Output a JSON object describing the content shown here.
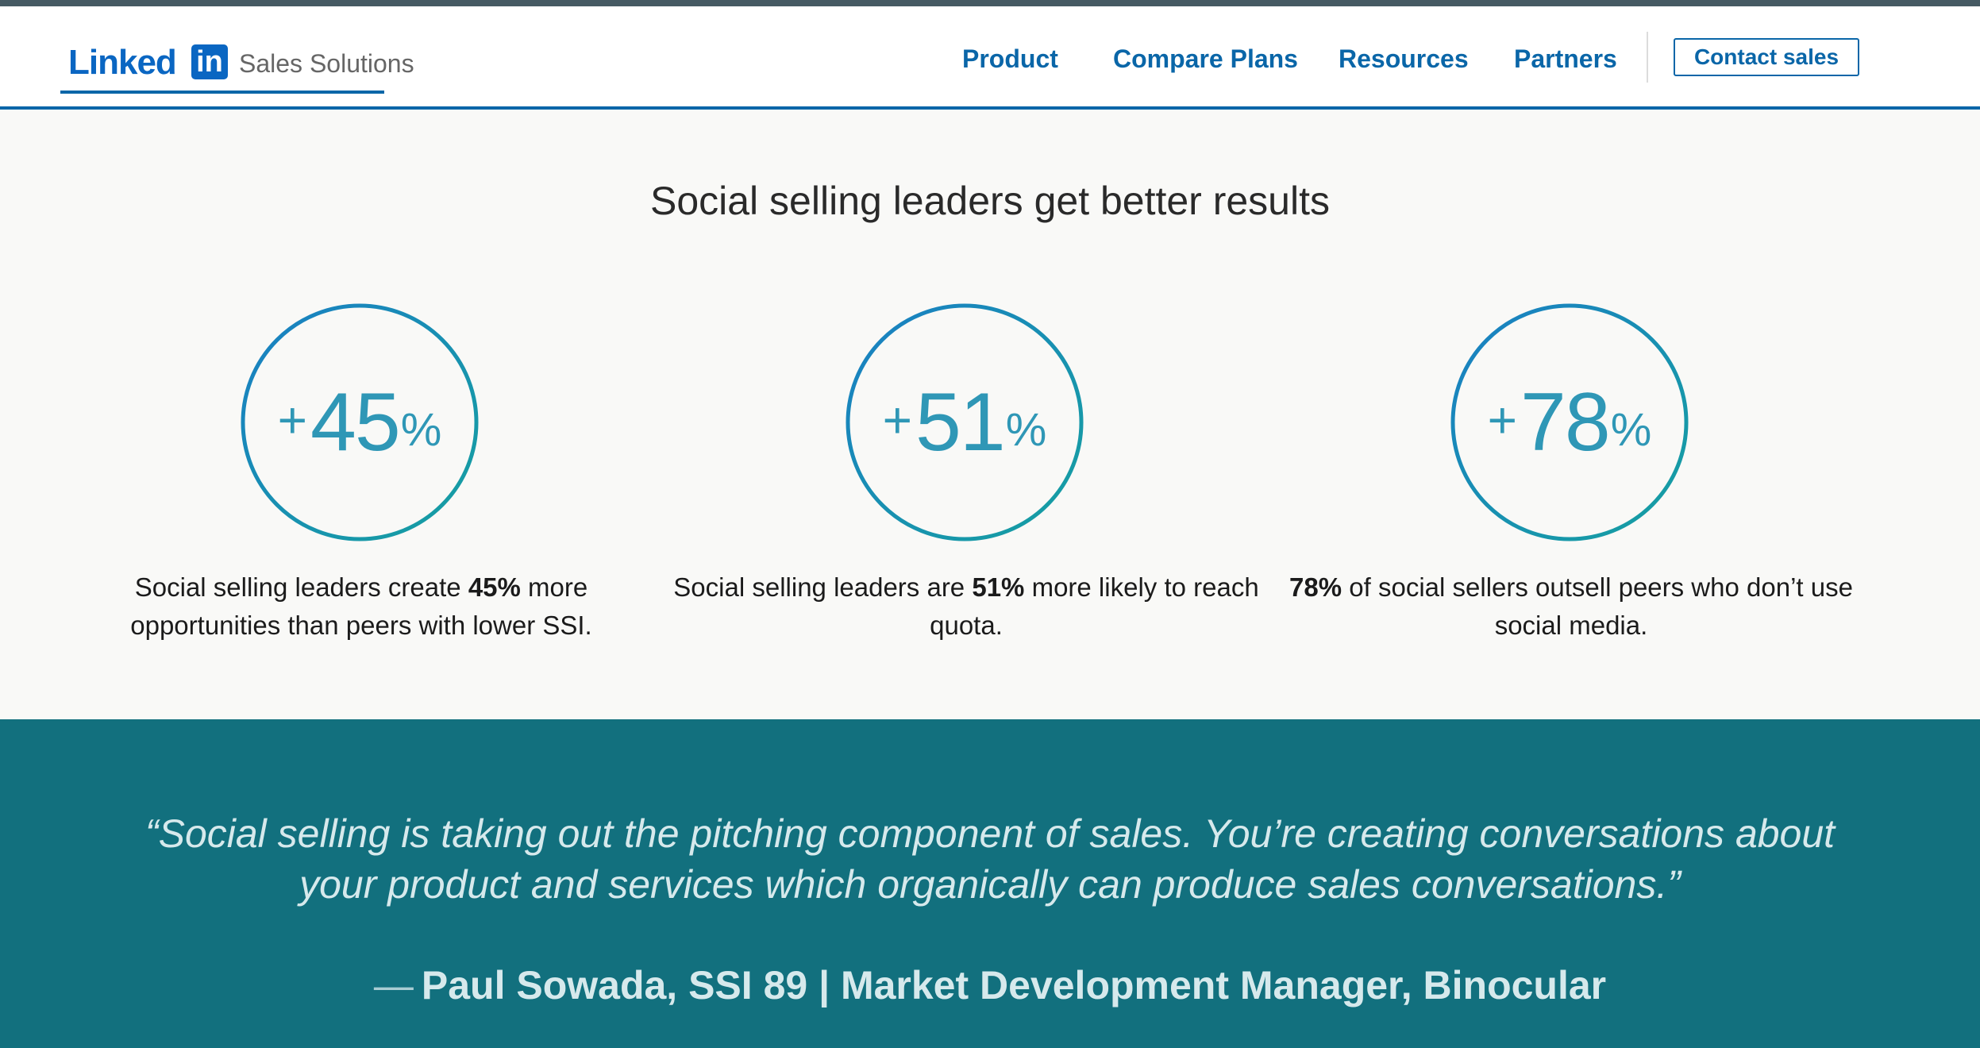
{
  "header": {
    "logo_word": "Linked",
    "logo_box": "in",
    "brand_subtitle": "Sales Solutions",
    "nav": [
      "Product",
      "Compare Plans",
      "Resources",
      "Partners"
    ],
    "contact_label": "Contact sales"
  },
  "main": {
    "title": "Social selling leaders get better results",
    "stats": [
      {
        "plus": "+",
        "number": "45",
        "percent": "%",
        "desc_before": "Social selling leaders create ",
        "desc_bold": "45%",
        "desc_after": " more opportunities than peers with lower SSI."
      },
      {
        "plus": "+",
        "number": "51",
        "percent": "%",
        "desc_before": "Social selling leaders are ",
        "desc_bold": "51%",
        "desc_after": " more likely to reach quota."
      },
      {
        "plus": "+",
        "number": "78",
        "percent": "%",
        "desc_before": "",
        "desc_bold": "78%",
        "desc_after": " of social sellers outsell peers who don’t use social media."
      }
    ]
  },
  "quote": {
    "text": "“Social selling is taking out the pitching component of sales. You’re creating conversations about your product and services which organically can produce sales conversations.”",
    "dash": "—",
    "author": "Paul Sowada, SSI 89 | Market Development Manager, Binocular"
  },
  "colors": {
    "brand_blue": "#0a66c2",
    "nav_blue": "#0a66a8",
    "ring_start": "#1a7fc4",
    "ring_end": "#16a0a0",
    "quote_band": "#12707e",
    "page_bg": "#f9f9f7"
  }
}
